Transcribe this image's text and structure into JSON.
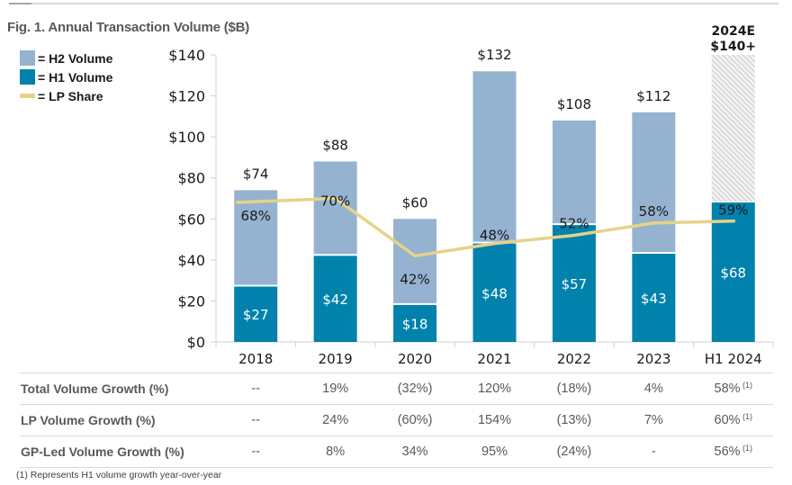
{
  "figure": {
    "title": "Fig. 1. Annual Transaction Volume ($B)",
    "footnote": "(1)  Represents H1 volume growth year-over-year"
  },
  "legend": [
    {
      "label": "= H2 Volume",
      "color": "#95b3d0",
      "kind": "box"
    },
    {
      "label": "= H1 Volume",
      "color": "#0082ac",
      "kind": "box"
    },
    {
      "label": "= LP Share",
      "color": "#e6d28a",
      "kind": "line"
    }
  ],
  "chart_data": {
    "type": "bar",
    "stacked": true,
    "title": "Fig. 1. Annual Transaction Volume ($B)",
    "xlabel": "",
    "ylabel": "",
    "ylim": [
      0,
      140
    ],
    "yticks": [
      0,
      20,
      40,
      60,
      80,
      100,
      120,
      140
    ],
    "ytick_labels": [
      "$0",
      "$20",
      "$40",
      "$60",
      "$80",
      "$100",
      "$120",
      "$140"
    ],
    "categories": [
      "2018",
      "2019",
      "2020",
      "2021",
      "2022",
      "2023",
      "H1 2024"
    ],
    "series": [
      {
        "name": "H1 Volume",
        "color": "#0082ac",
        "values": [
          27,
          42,
          18,
          48,
          57,
          43,
          68
        ],
        "labels": [
          "$27",
          "$42",
          "$18",
          "$48",
          "$57",
          "$43",
          "$68"
        ]
      },
      {
        "name": "H2 Volume",
        "color": "#95b3d0",
        "values": [
          47,
          46,
          42,
          84,
          51,
          69,
          null
        ]
      },
      {
        "name": "2024E (estimate, hatched)",
        "color": "#d9d9d9",
        "values": [
          null,
          null,
          null,
          null,
          null,
          null,
          72
        ]
      }
    ],
    "totals": [
      74,
      88,
      60,
      132,
      108,
      112,
      null
    ],
    "total_labels": [
      "$74",
      "$88",
      "$60",
      "$132",
      "$108",
      "$112",
      null
    ],
    "estimate_label": [
      "2024E",
      "$140+"
    ],
    "line": {
      "name": "LP Share",
      "color": "#e6d28a",
      "values": [
        68,
        70,
        42,
        48,
        52,
        58,
        59
      ],
      "labels": [
        "68%",
        "70%",
        "42%",
        "48%",
        "52%",
        "58%",
        "59%"
      ]
    },
    "grid": false,
    "legend_position": "top-left"
  },
  "table": {
    "rows": [
      {
        "label": "Total Volume Growth (%)",
        "values": [
          "--",
          "19%",
          "(32%)",
          "120%",
          "(18%)",
          "4%",
          "58%"
        ],
        "note_on_last": "(1)"
      },
      {
        "label": "LP Volume Growth (%)",
        "values": [
          "--",
          "24%",
          "(60%)",
          "154%",
          "(13%)",
          "7%",
          "60%"
        ],
        "note_on_last": "(1)"
      },
      {
        "label": "GP-Led Volume Growth (%)",
        "values": [
          "--",
          "8%",
          "34%",
          "95%",
          "(24%)",
          "-",
          "56%"
        ],
        "note_on_last": "(1)"
      }
    ]
  }
}
